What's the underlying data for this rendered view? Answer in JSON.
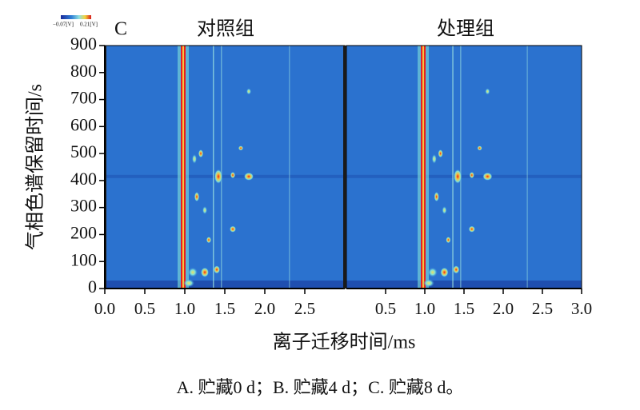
{
  "panel_label": "C",
  "colorbar": {
    "min_label": "−0.07[V]",
    "max_label": "0.21[V]"
  },
  "chart_data": [
    {
      "type": "heatmap",
      "title": "对照组",
      "xlabel": "离子迁移时间/ms",
      "ylabel": "气相色谱保留时间/s",
      "xlim": [
        0,
        3
      ],
      "xticks": [
        {
          "value": 0,
          "label": "0.0"
        },
        0.5,
        {
          "value": 1,
          "label": "1.0"
        },
        1.5,
        {
          "value": 2,
          "label": "2.0"
        },
        2.5
      ],
      "ylim": [
        0,
        900
      ],
      "yticks": [
        0,
        100,
        200,
        300,
        400,
        500,
        600,
        700,
        800,
        900
      ]
    },
    {
      "type": "heatmap",
      "title": "处理组",
      "xlim": [
        0,
        3
      ],
      "xticks": [
        0.5,
        {
          "value": 1,
          "label": "1.0"
        },
        1.5,
        {
          "value": 2,
          "label": "2.0"
        },
        2.5,
        {
          "value": 3,
          "label": "3.0"
        }
      ],
      "ylim": [
        0,
        900
      ]
    }
  ],
  "caption": "A. 贮藏0 d；B. 贮藏4 d；C. 贮藏8 d。"
}
